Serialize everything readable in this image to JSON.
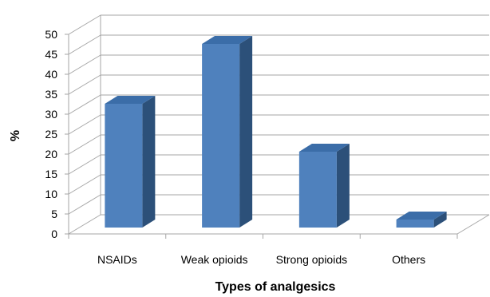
{
  "chart_data": {
    "type": "bar",
    "categories": [
      "NSAIDs",
      "Weak opioids",
      "Strong opioids",
      "Others"
    ],
    "values": [
      31,
      46,
      19,
      2
    ],
    "xlabel": "Types of analgesics",
    "ylabel": "%",
    "ylim": [
      0,
      50
    ],
    "yticks": [
      "0",
      "5",
      "10",
      "15",
      "20",
      "25",
      "30",
      "35",
      "40",
      "45",
      "50"
    ],
    "grid": true,
    "legend": "none",
    "colors": {
      "bar_front": "#4F81BD",
      "bar_side": "#2C5079",
      "bar_top": "#3B6DA8",
      "grid": "#A6A6A6"
    }
  }
}
